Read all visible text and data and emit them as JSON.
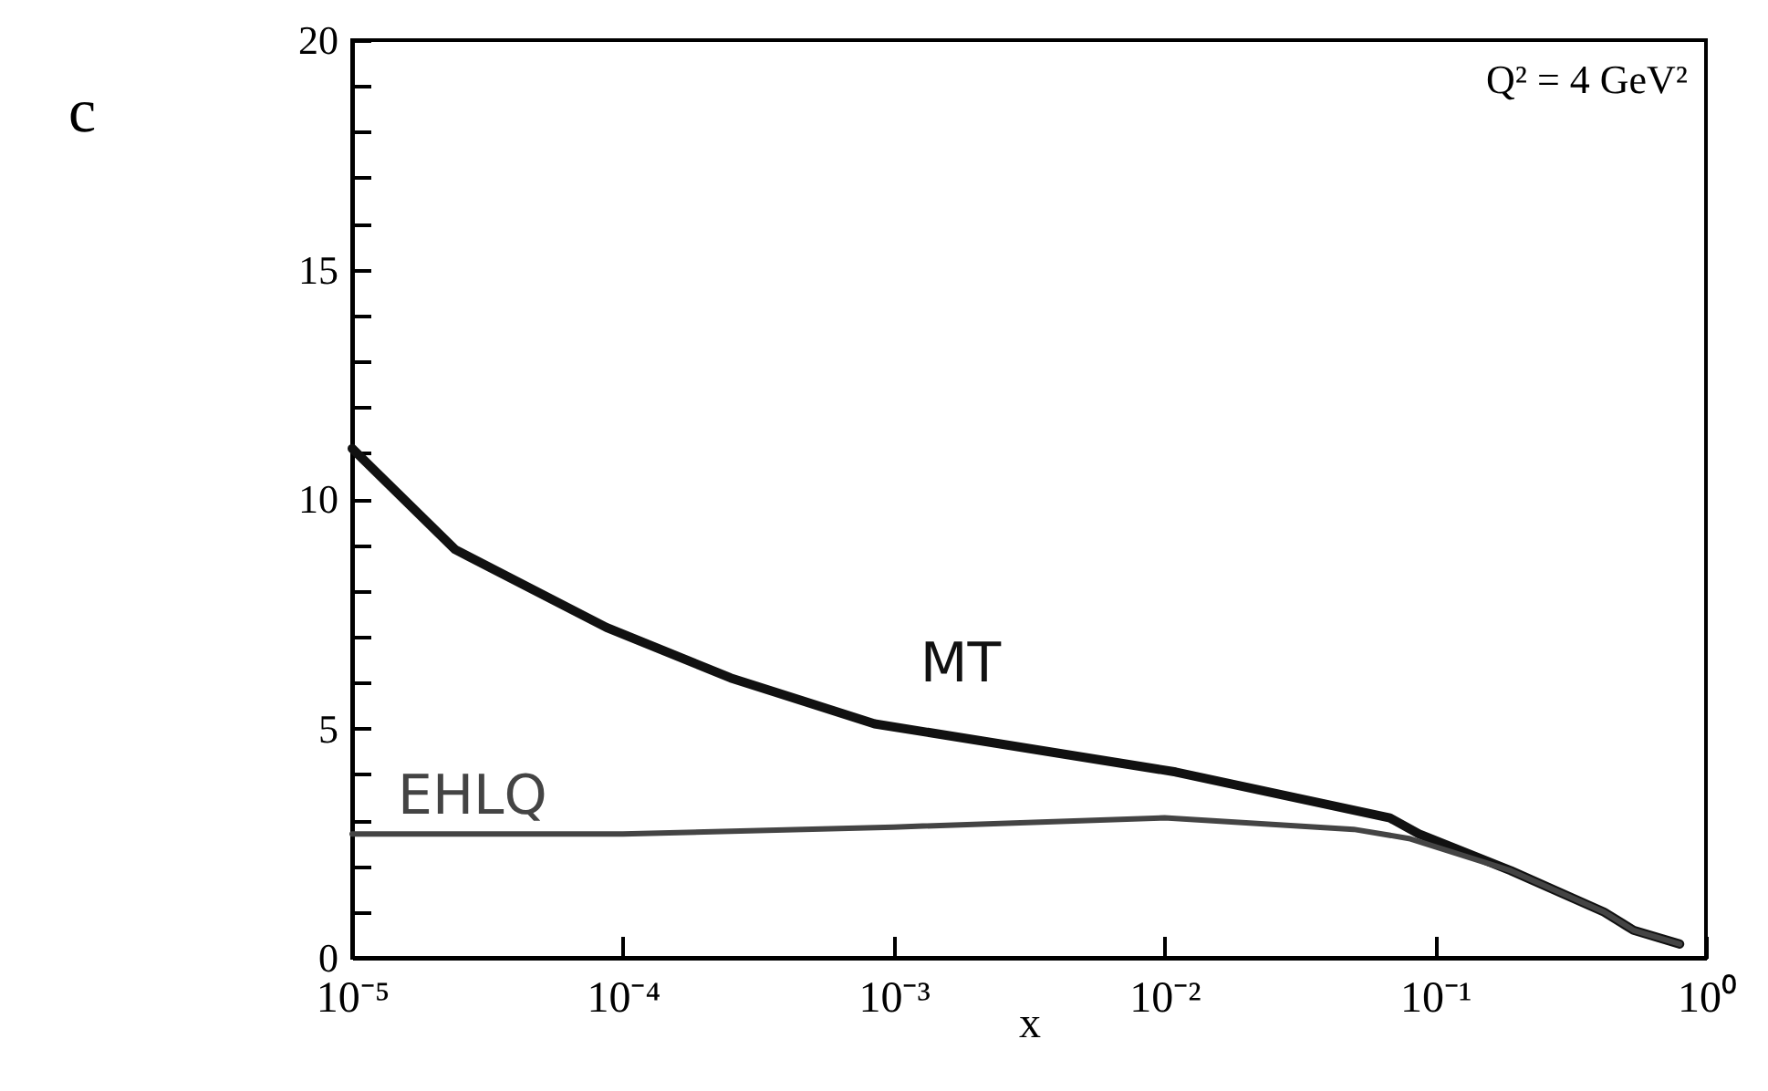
{
  "chart_data": {
    "type": "line",
    "xlabel": "x",
    "log": "x",
    "marker": "none",
    "line_style": "solid",
    "annotations": [
      "Q² = 4 GeV²",
      "c"
    ],
    "xlim": [
      1e-05,
      1
    ],
    "ylim": [
      0,
      20
    ],
    "xticks": [
      {
        "value": 1e-05,
        "label": "10⁻⁵"
      },
      {
        "value": 0.0001,
        "label": "10⁻⁴"
      },
      {
        "value": 0.001,
        "label": "10⁻³"
      },
      {
        "value": 0.01,
        "label": "10⁻²"
      },
      {
        "value": 0.1,
        "label": "10⁻¹"
      },
      {
        "value": 1,
        "label": "10⁰"
      }
    ],
    "yticks": [
      0,
      {
        "value": 1,
        "label": null
      },
      {
        "value": 2,
        "label": null
      },
      {
        "value": 3,
        "label": null
      },
      {
        "value": 4,
        "label": null
      },
      5,
      {
        "value": 6,
        "label": null
      },
      {
        "value": 7,
        "label": null
      },
      {
        "value": 8,
        "label": null
      },
      {
        "value": 9,
        "label": null
      },
      10,
      {
        "value": 11,
        "label": null
      },
      {
        "value": 12,
        "label": null
      },
      {
        "value": 13,
        "label": null
      },
      {
        "value": 14,
        "label": null
      },
      15,
      {
        "value": 16,
        "label": null
      },
      {
        "value": 17,
        "label": null
      },
      {
        "value": 18,
        "label": null
      },
      {
        "value": 19,
        "label": null
      },
      20
    ],
    "series": [
      {
        "name": "MT",
        "color": "#111111",
        "x": [
          1e-05,
          2.4e-05,
          8.7e-05,
          0.00025,
          0.00085,
          0.011,
          0.068,
          0.087,
          0.19,
          0.42,
          0.54,
          0.8
        ],
        "values": [
          11.1,
          8.9,
          7.2,
          6.1,
          5.1,
          4.05,
          3.05,
          2.7,
          1.9,
          1.0,
          0.6,
          0.3
        ]
      },
      {
        "name": "EHLQ",
        "color": "#444444",
        "x": [
          1e-05,
          0.0001,
          0.001,
          0.01,
          0.05,
          0.08,
          0.19,
          0.42,
          0.54,
          0.8
        ],
        "values": [
          2.7,
          2.7,
          2.85,
          3.05,
          2.8,
          2.6,
          1.9,
          1.0,
          0.6,
          0.3
        ]
      }
    ]
  }
}
